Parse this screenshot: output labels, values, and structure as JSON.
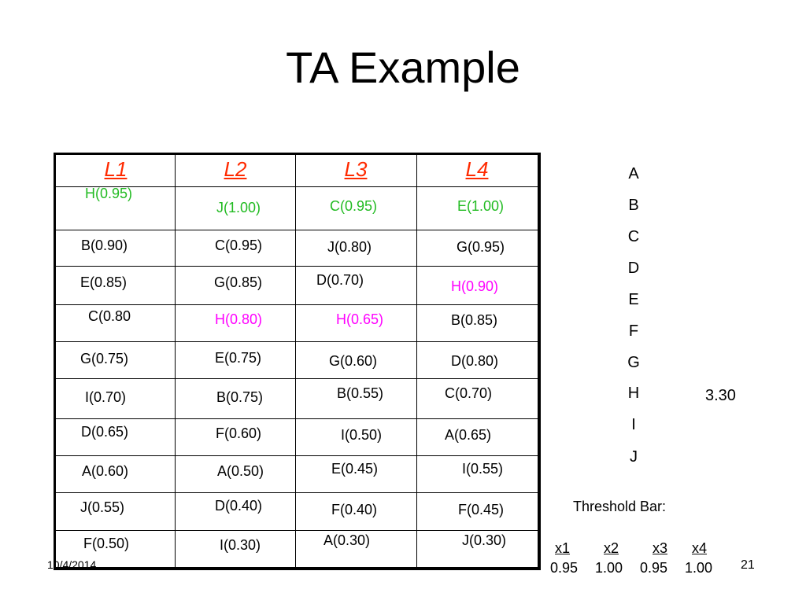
{
  "title": "TA Example",
  "table": {
    "headers": [
      "L1",
      "L2",
      "L3",
      "L4"
    ],
    "rows": [
      [
        "H(0.95)",
        "J(1.00)",
        "C(0.95)",
        "E(1.00)"
      ],
      [
        "B(0.90)",
        "C(0.95)",
        "J(0.80)",
        "G(0.95)"
      ],
      [
        "E(0.85)",
        "G(0.85)",
        "D(0.70)",
        "H(0.90)"
      ],
      [
        "C(0.80",
        "H(0.80)",
        "H(0.65)",
        "B(0.85)"
      ],
      [
        "G(0.75)",
        "E(0.75)",
        "G(0.60)",
        "D(0.80)"
      ],
      [
        "I(0.70)",
        "B(0.75)",
        "B(0.55)",
        "C(0.70)"
      ],
      [
        "D(0.65)",
        "F(0.60)",
        "I(0.50)",
        "A(0.65)"
      ],
      [
        "A(0.60)",
        "A(0.50)",
        "E(0.45)",
        "I(0.55)"
      ],
      [
        "J(0.55)",
        "D(0.40)",
        "F(0.40)",
        "F(0.45)"
      ],
      [
        "F(0.50)",
        "I(0.30)",
        "A(0.30)",
        "J(0.30)"
      ]
    ],
    "colors": {
      "header": "#ff2a00",
      "green": "#22bb22",
      "magenta": "#ff00ff"
    }
  },
  "letters": [
    "A",
    "B",
    "C",
    "D",
    "E",
    "F",
    "G",
    "H",
    "I",
    "J"
  ],
  "score": "3.30",
  "threshold": {
    "label": "Threshold Bar:",
    "labels": [
      "x1",
      "x2",
      "x3",
      "x4"
    ],
    "values": [
      "0.95",
      "1.00",
      "0.95",
      "1.00"
    ]
  },
  "footer": {
    "date": "10/4/2014",
    "page": "21"
  }
}
